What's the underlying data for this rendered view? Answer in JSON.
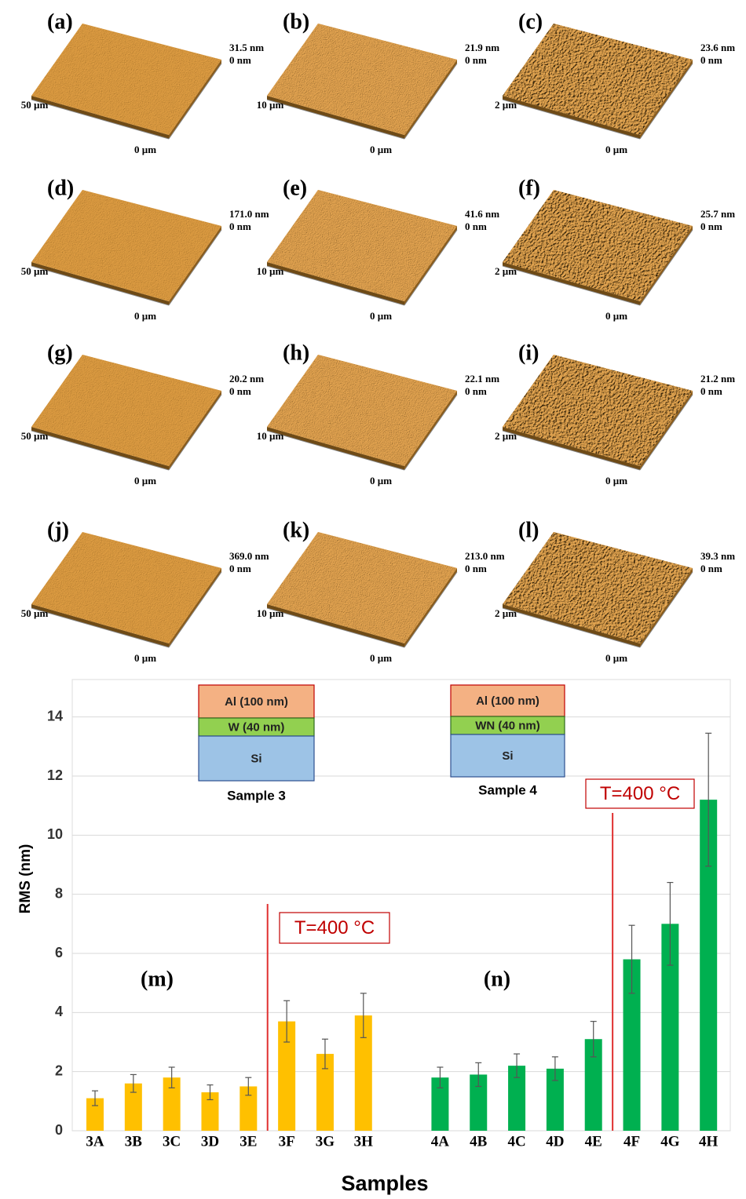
{
  "panels": [
    {
      "label": "(a)",
      "z_max": "31.5 nm",
      "z_min": "0 nm",
      "scan": "50 µm",
      "origin": "0 µm"
    },
    {
      "label": "(b)",
      "z_max": "21.9 nm",
      "z_min": "0 nm",
      "scan": "10 µm",
      "origin": "0 µm"
    },
    {
      "label": "(c)",
      "z_max": "23.6 nm",
      "z_min": "0 nm",
      "scan": "2 µm",
      "origin": "0 µm"
    },
    {
      "label": "(d)",
      "z_max": "171.0 nm",
      "z_min": "0 nm",
      "scan": "50 µm",
      "origin": "0 µm"
    },
    {
      "label": "(e)",
      "z_max": "41.6 nm",
      "z_min": "0 nm",
      "scan": "10 µm",
      "origin": "0 µm"
    },
    {
      "label": "(f)",
      "z_max": "25.7 nm",
      "z_min": "0 nm",
      "scan": "2 µm",
      "origin": "0 µm"
    },
    {
      "label": "(g)",
      "z_max": "20.2 nm",
      "z_min": "0 nm",
      "scan": "50 µm",
      "origin": "0 µm"
    },
    {
      "label": "(h)",
      "z_max": "22.1 nm",
      "z_min": "0 nm",
      "scan": "10 µm",
      "origin": "0 µm"
    },
    {
      "label": "(i)",
      "z_max": "21.2 nm",
      "z_min": "0 nm",
      "scan": "2 µm",
      "origin": "0 µm"
    },
    {
      "label": "(j)",
      "z_max": "369.0 nm",
      "z_min": "0 nm",
      "scan": "50 µm",
      "origin": "0 µm"
    },
    {
      "label": "(k)",
      "z_max": "213.0 nm",
      "z_min": "0 nm",
      "scan": "10 µm",
      "origin": "0 µm"
    },
    {
      "label": "(l)",
      "z_max": "39.3 nm",
      "z_min": "0 nm",
      "scan": "2 µm",
      "origin": "0 µm"
    }
  ],
  "chart_data": {
    "type": "bar",
    "x_label": "Samples",
    "y_label": "RMS (nm)",
    "categories": [
      "3A",
      "3B",
      "3C",
      "3D",
      "3E",
      "3F",
      "3G",
      "3H",
      null,
      "4A",
      "4B",
      "4C",
      "4D",
      "4E",
      "4F",
      "4G",
      "4H"
    ],
    "series": [
      {
        "name": "Sample 3",
        "color": "#ffc000",
        "values": [
          1.1,
          1.6,
          1.8,
          1.3,
          1.5,
          3.7,
          2.6,
          3.9,
          null,
          null,
          null,
          null,
          null,
          null,
          null,
          null,
          null
        ],
        "errors": [
          0.25,
          0.3,
          0.35,
          0.25,
          0.3,
          0.7,
          0.5,
          0.75,
          null,
          null,
          null,
          null,
          null,
          null,
          null,
          null,
          null
        ],
        "layers": [
          "Al (100 nm)",
          "W (40 nm)",
          "Si"
        ]
      },
      {
        "name": "Sample 4",
        "color": "#00b050",
        "values": [
          null,
          null,
          null,
          null,
          null,
          null,
          null,
          null,
          null,
          1.8,
          1.9,
          2.2,
          2.1,
          3.1,
          5.8,
          7.0,
          11.2
        ],
        "errors": [
          null,
          null,
          null,
          null,
          null,
          null,
          null,
          null,
          null,
          0.35,
          0.4,
          0.4,
          0.4,
          0.6,
          1.15,
          1.4,
          2.25
        ],
        "layers": [
          "Al (100 nm)",
          "WN (40 nm)",
          "Si"
        ]
      }
    ],
    "annotations": [
      "(m)",
      "(n)",
      "T=400 °C",
      "T=400 °C"
    ],
    "ylim": [
      0,
      15
    ],
    "yticks": [
      0,
      2,
      4,
      6,
      8,
      10,
      12,
      14
    ],
    "grid": true
  }
}
